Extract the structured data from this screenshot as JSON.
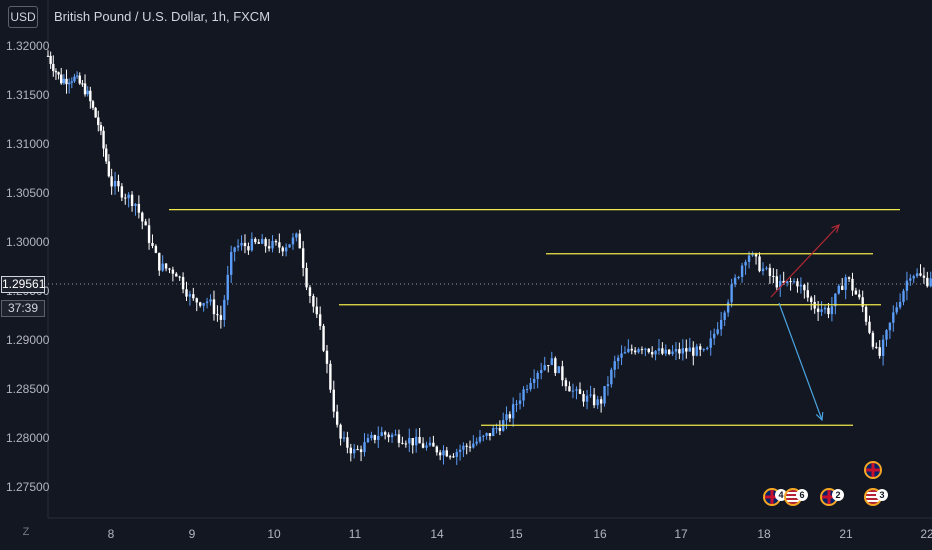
{
  "header": {
    "currency_button": "USD",
    "title": "British Pound / U.S. Dollar, 1h, FXCM"
  },
  "price_axis": {
    "labels": [
      "1.32000",
      "1.31500",
      "1.31000",
      "1.30500",
      "1.30000",
      "1.29500",
      "1.29000",
      "1.28500",
      "1.28000",
      "1.27500"
    ],
    "values": [
      1.32,
      1.315,
      1.31,
      1.305,
      1.3,
      1.295,
      1.29,
      1.285,
      1.28,
      1.275
    ],
    "current_price": "1.29561",
    "countdown": "37:39"
  },
  "time_axis": {
    "labels": [
      "8",
      "9",
      "10",
      "11",
      "14",
      "15",
      "16",
      "17",
      "18",
      "21",
      "22"
    ]
  },
  "zoom_button": "Z",
  "events": [
    {
      "flag": "uk",
      "count": "4"
    },
    {
      "flag": "us",
      "count": "6"
    },
    {
      "flag": "uk",
      "count": "2"
    },
    {
      "flag": "uk",
      "count": ""
    },
    {
      "flag": "us",
      "count": "3"
    }
  ],
  "colors": {
    "background": "#131722",
    "candle_up": "#5b9cf6",
    "candle_down": "#ffffff",
    "levels": "#f0e94a",
    "arrow_up": "#b22833",
    "arrow_down": "#4aa3df",
    "crosshair": "#9598a1"
  },
  "chart_data": {
    "type": "candlestick",
    "symbol": "GBPUSD",
    "interval": "1h",
    "ylim": [
      1.2735,
      1.3225
    ],
    "x_days": [
      "8",
      "9",
      "10",
      "11",
      "14",
      "15",
      "16",
      "17",
      "18",
      "21",
      "22"
    ],
    "close_path": [
      [
        0.0,
        1.319
      ],
      [
        0.2,
        1.3165
      ],
      [
        0.4,
        1.3168
      ],
      [
        0.6,
        1.3155
      ],
      [
        0.8,
        1.312
      ],
      [
        1.0,
        1.306
      ],
      [
        1.3,
        1.304
      ],
      [
        1.6,
        1.2975
      ],
      [
        1.8,
        1.297
      ],
      [
        2.0,
        1.294
      ],
      [
        2.2,
        1.294
      ],
      [
        2.35,
        1.292
      ],
      [
        2.5,
        1.2995
      ],
      [
        2.8,
        1.2998
      ],
      [
        3.1,
        1.2995
      ],
      [
        3.3,
        1.3005
      ],
      [
        3.4,
        1.296
      ],
      [
        3.6,
        1.29
      ],
      [
        3.8,
        1.28
      ],
      [
        4.0,
        1.2785
      ],
      [
        4.3,
        1.2805
      ],
      [
        4.6,
        1.28
      ],
      [
        4.9,
        1.279
      ],
      [
        5.2,
        1.2785
      ],
      [
        5.6,
        1.28
      ],
      [
        5.9,
        1.282
      ],
      [
        6.2,
        1.2865
      ],
      [
        6.4,
        1.288
      ],
      [
        6.7,
        1.2845
      ],
      [
        7.0,
        1.2835
      ],
      [
        7.2,
        1.288
      ],
      [
        7.5,
        1.2895
      ],
      [
        7.8,
        1.2885
      ],
      [
        8.1,
        1.289
      ],
      [
        8.3,
        1.2885
      ],
      [
        8.6,
        1.295
      ],
      [
        8.8,
        1.299
      ],
      [
        8.95,
        1.2975
      ],
      [
        9.2,
        1.2955
      ],
      [
        9.4,
        1.296
      ],
      [
        9.6,
        1.2935
      ],
      [
        9.8,
        1.293
      ],
      [
        10.0,
        1.2965
      ],
      [
        10.2,
        1.2935
      ],
      [
        10.4,
        1.288
      ],
      [
        10.6,
        1.293
      ],
      [
        10.8,
        1.297
      ],
      [
        11.0,
        1.296
      ],
      [
        11.2,
        1.2985
      ],
      [
        11.4,
        1.2956
      ]
    ],
    "levels": [
      {
        "price": 1.3033,
        "from_day": 1.7,
        "to_day": 14.0
      },
      {
        "price": 1.2988,
        "from_day": 8.3,
        "to_day": 12.3
      },
      {
        "price": 1.2936,
        "from_day": 4.6,
        "to_day": 12.3
      },
      {
        "price": 1.2813,
        "from_day": 6.8,
        "to_day": 12.3
      }
    ],
    "projections": [
      {
        "direction": "up",
        "from": [
          11.5,
          1.2955
        ],
        "to": [
          12.4,
          1.3015
        ]
      },
      {
        "direction": "down",
        "from": [
          11.5,
          1.2936
        ],
        "to": [
          12.2,
          1.2818
        ]
      }
    ]
  }
}
